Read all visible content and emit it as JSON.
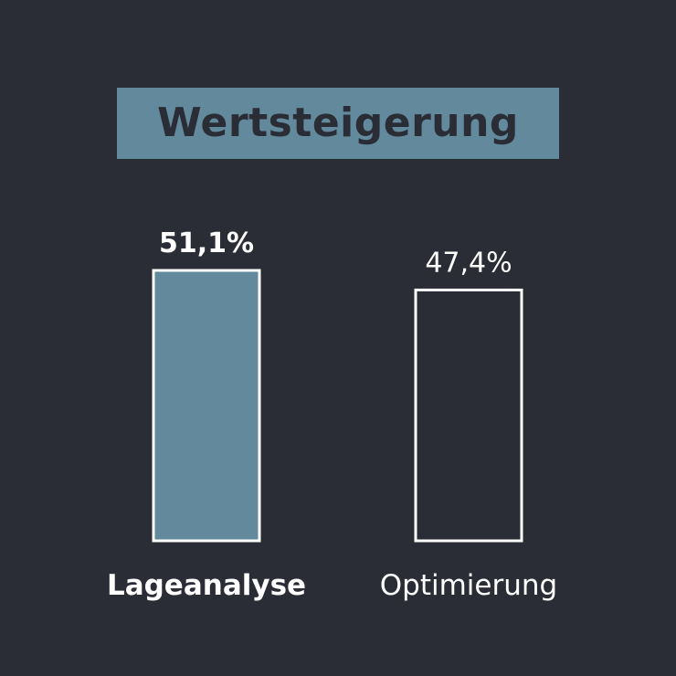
{
  "colors": {
    "background": "#2b2d36",
    "accent": "#628a9c",
    "outline": "#ffffff",
    "title_text": "#2a2d36"
  },
  "chart_data": {
    "type": "bar",
    "title": "Wertsteigerung",
    "categories": [
      "Lageanalyse",
      "Optimierung"
    ],
    "values": [
      51.1,
      47.4
    ],
    "value_labels": [
      "51,1%",
      "47,4%"
    ],
    "unit": "%",
    "bar_styles": [
      "filled",
      "outline"
    ],
    "highlighted": [
      true,
      false
    ],
    "grid": false,
    "legend": "none"
  }
}
